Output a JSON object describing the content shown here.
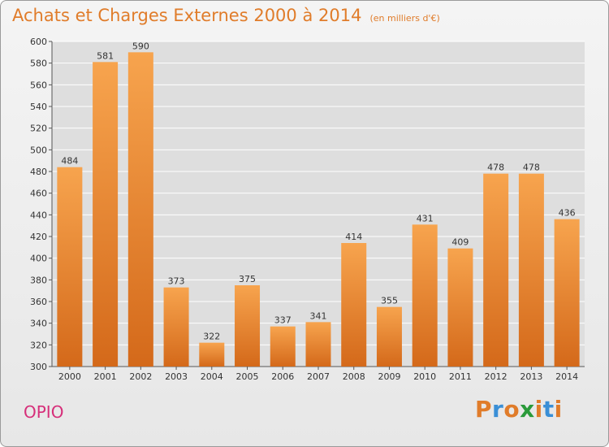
{
  "header": {
    "title": "Achats et Charges Externes 2000 à 2014",
    "unit": "(en milliers d'€)"
  },
  "footer": {
    "commune": "OPIO",
    "brand": "Proxiti"
  },
  "colors": {
    "title": "#e07c2a",
    "commune": "#d62f7a",
    "bar_top": "#f7a44e",
    "bar_bottom": "#d4691a",
    "grid": "#ffffff",
    "brand_letters": [
      "#e07c2a",
      "#3a8fd6",
      "#e07c2a",
      "#2a9a3a",
      "#e07c2a",
      "#3a8fd6",
      "#e07c2a"
    ]
  },
  "chart_data": {
    "type": "bar",
    "title": "Achats et Charges Externes 2000 à 2014",
    "subtitle": "(en milliers d'€)",
    "xlabel": "",
    "ylabel": "",
    "categories": [
      "2000",
      "2001",
      "2002",
      "2003",
      "2004",
      "2005",
      "2006",
      "2007",
      "2008",
      "2009",
      "2010",
      "2011",
      "2012",
      "2013",
      "2014"
    ],
    "values": [
      484,
      581,
      590,
      373,
      322,
      375,
      337,
      341,
      414,
      355,
      431,
      409,
      478,
      478,
      436
    ],
    "ylim": [
      300,
      600
    ],
    "yticks": [
      300,
      320,
      340,
      360,
      380,
      400,
      420,
      440,
      460,
      480,
      500,
      520,
      540,
      560,
      580,
      600
    ],
    "grid": true,
    "legend": "none"
  }
}
